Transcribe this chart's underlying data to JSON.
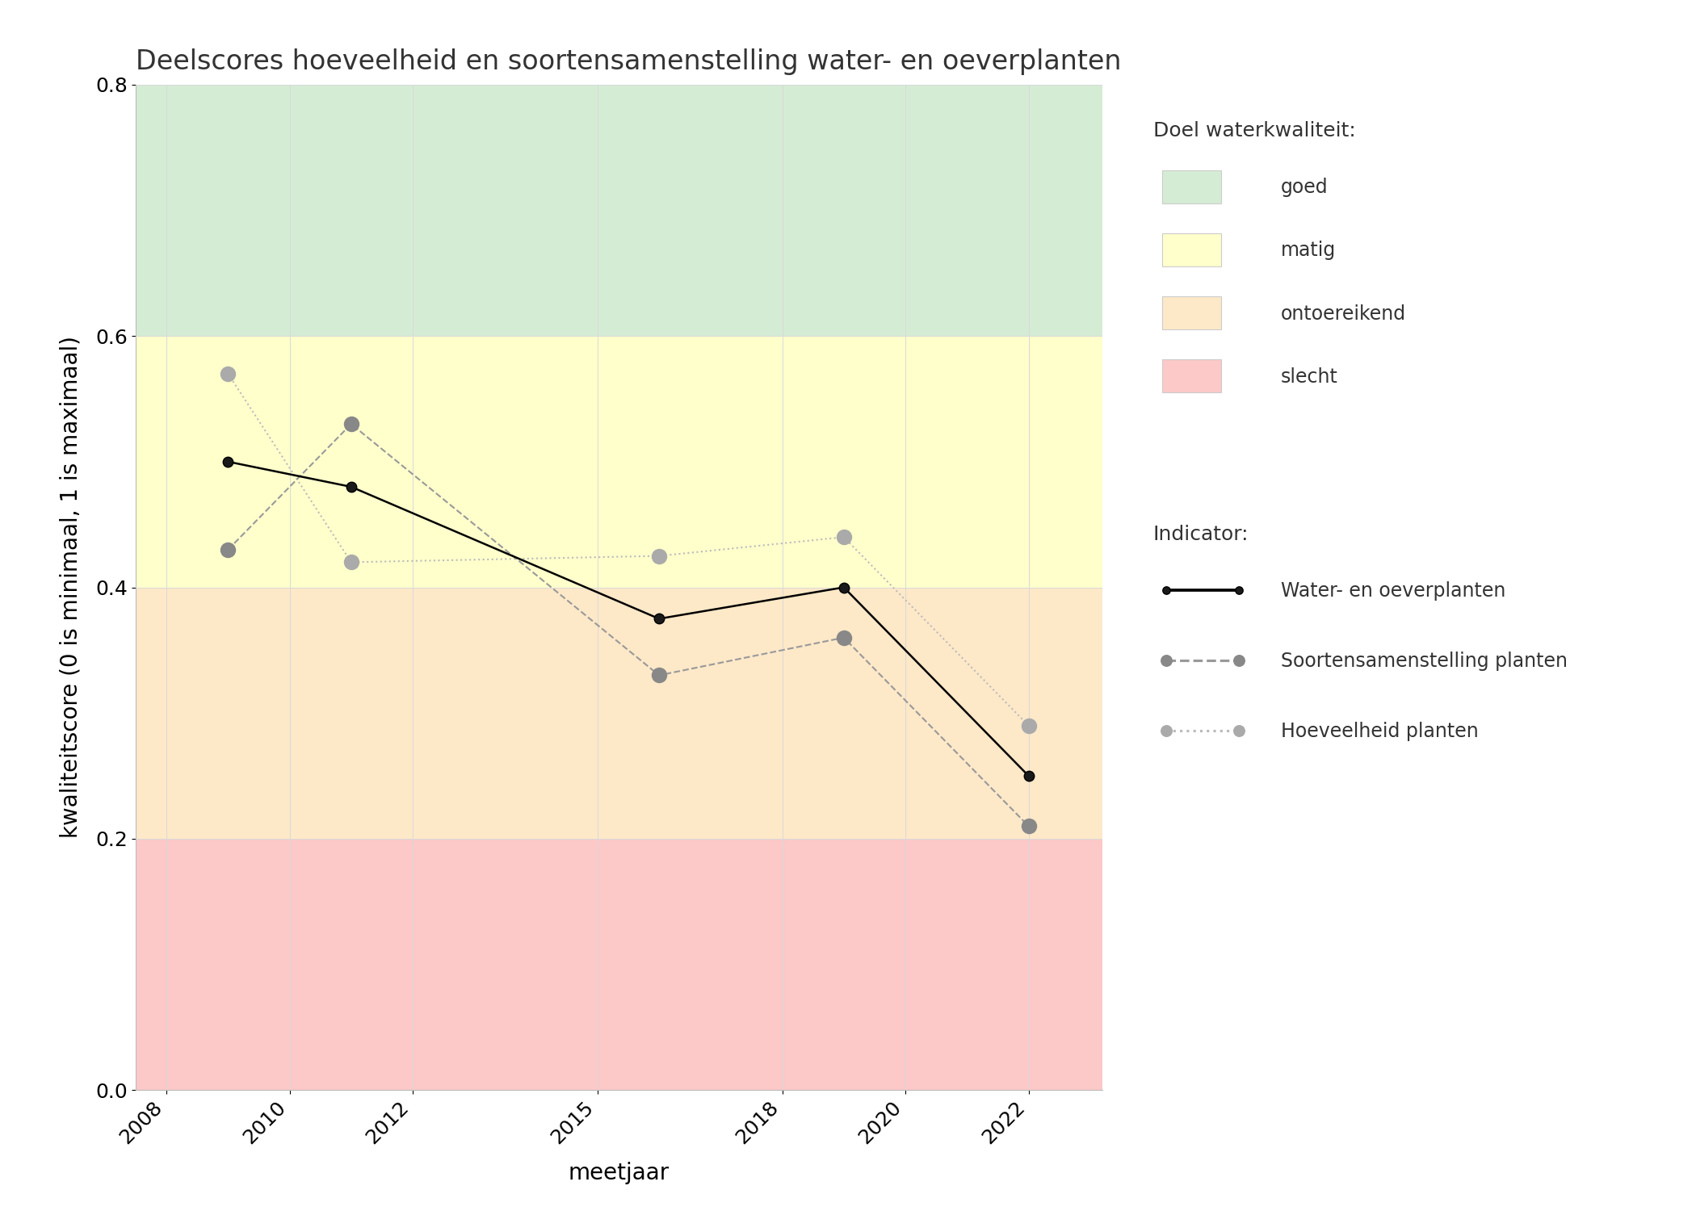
{
  "title": "Deelscores hoeveelheid en soortensamenstelling water- en oeverplanten",
  "xlabel": "meetjaar",
  "ylabel": "kwaliteitscore (0 is minimaal, 1 is maximaal)",
  "xlim": [
    2007.5,
    2023.2
  ],
  "ylim": [
    0.0,
    0.8
  ],
  "xticks": [
    2008,
    2010,
    2012,
    2015,
    2018,
    2020,
    2022
  ],
  "yticks": [
    0.0,
    0.2,
    0.4,
    0.6,
    0.8
  ],
  "background_color": "#ffffff",
  "panel_background": "#f2f2f2",
  "bg_zones": [
    {
      "name": "goed",
      "ymin": 0.6,
      "ymax": 0.8,
      "color": "#d5ecd4"
    },
    {
      "name": "matig",
      "ymin": 0.4,
      "ymax": 0.6,
      "color": "#ffffcc"
    },
    {
      "name": "ontoereikend",
      "ymin": 0.2,
      "ymax": 0.4,
      "color": "#fde8c8"
    },
    {
      "name": "slecht",
      "ymin": 0.0,
      "ymax": 0.2,
      "color": "#fcc8c8"
    }
  ],
  "water_oever": {
    "years": [
      2009,
      2011,
      2016,
      2019,
      2022
    ],
    "values": [
      0.5,
      0.48,
      0.375,
      0.4,
      0.25
    ],
    "color": "#000000",
    "linestyle": "-",
    "linewidth": 1.8,
    "marker": "o",
    "markersize": 9,
    "markerfacecolor": "#1a1a1a",
    "markeredgecolor": "#000000",
    "label": "Water- en oeverplanten"
  },
  "soortensamenstelling": {
    "years": [
      2009,
      2011,
      2016,
      2019,
      2022
    ],
    "values": [
      0.43,
      0.53,
      0.33,
      0.36,
      0.21
    ],
    "color": "#999999",
    "linestyle": "--",
    "linewidth": 1.5,
    "marker": "o",
    "markersize": 13,
    "markerfacecolor": "#888888",
    "markeredgecolor": "#888888",
    "label": "Soortensamenstelling planten"
  },
  "hoeveelheid": {
    "years": [
      2009,
      2011,
      2016,
      2019,
      2022
    ],
    "values": [
      0.57,
      0.42,
      0.425,
      0.44,
      0.29
    ],
    "color": "#bbbbbb",
    "linestyle": ":",
    "linewidth": 1.5,
    "marker": "o",
    "markersize": 13,
    "markerfacecolor": "#aaaaaa",
    "markeredgecolor": "#aaaaaa",
    "label": "Hoeveelheid planten"
  },
  "legend_quality_title": "Doel waterkwaliteit:",
  "legend_quality_items": [
    {
      "label": "goed",
      "color": "#d5ecd4"
    },
    {
      "label": "matig",
      "color": "#ffffcc"
    },
    {
      "label": "ontoereikend",
      "color": "#fde8c8"
    },
    {
      "label": "slecht",
      "color": "#fcc8c8"
    }
  ],
  "legend_indicator_title": "Indicator:",
  "grid_color": "#d9d9d9",
  "grid_linewidth": 0.7,
  "title_fontsize": 24,
  "axis_label_fontsize": 20,
  "tick_fontsize": 18,
  "legend_title_fontsize": 18,
  "legend_fontsize": 17
}
